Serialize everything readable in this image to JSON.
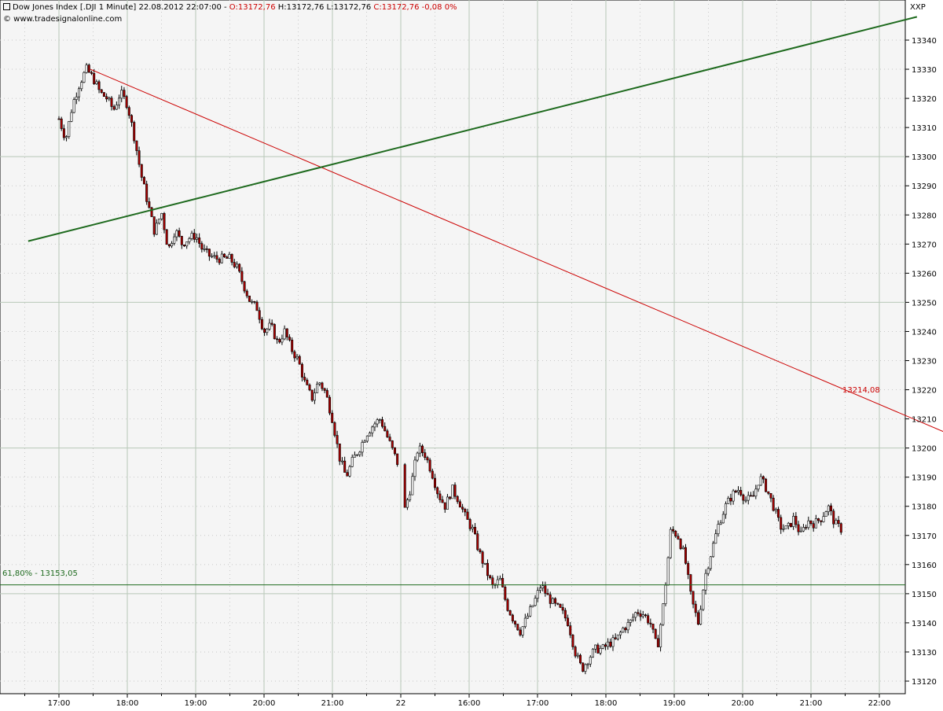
{
  "header": {
    "title_black": "Dow Jones Index [.DJI  1 Minute] 22.08.2012 22:07:00 - ",
    "open": "O:13172,76",
    "high": "H:13172,76",
    "low": "L:13172,76",
    "close_change": "C:13172,76 -0,08 0%",
    "copyright": "© www.tradesignalonline.com",
    "exchange": "XXP"
  },
  "chart_data": {
    "type": "candlestick",
    "title": "Dow Jones Index [.DJI  1 Minute] 22.08.2012 22:07:00",
    "ylim": [
      13110,
      13350
    ],
    "y_ticks": [
      13120,
      13130,
      13140,
      13150,
      13160,
      13170,
      13180,
      13190,
      13200,
      13210,
      13220,
      13230,
      13240,
      13250,
      13260,
      13270,
      13280,
      13290,
      13300,
      13310,
      13320,
      13330,
      13340
    ],
    "x_ticks": [
      "17:00",
      "18:00",
      "19:00",
      "20:00",
      "21:00",
      "22",
      "16:00",
      "17:00",
      "18:00",
      "19:00",
      "20:00",
      "21:00",
      "22:00"
    ],
    "price_path": [
      [
        0,
        13313
      ],
      [
        0.1,
        13306
      ],
      [
        0.2,
        13318
      ],
      [
        0.3,
        13325
      ],
      [
        0.4,
        13330
      ],
      [
        0.5,
        13327
      ],
      [
        0.6,
        13322
      ],
      [
        0.7,
        13320
      ],
      [
        0.8,
        13316
      ],
      [
        0.9,
        13322
      ],
      [
        1.0,
        13318
      ],
      [
        1.1,
        13307
      ],
      [
        1.2,
        13294
      ],
      [
        1.3,
        13284
      ],
      [
        1.4,
        13274
      ],
      [
        1.5,
        13281
      ],
      [
        1.6,
        13268
      ],
      [
        1.7,
        13275
      ],
      [
        1.8,
        13270
      ],
      [
        1.9,
        13272
      ],
      [
        2.0,
        13273
      ],
      [
        2.1,
        13268
      ],
      [
        2.2,
        13266
      ],
      [
        2.3,
        13265
      ],
      [
        2.5,
        13265
      ],
      [
        2.6,
        13262
      ],
      [
        2.7,
        13256
      ],
      [
        2.8,
        13250
      ],
      [
        2.9,
        13248
      ],
      [
        3.0,
        13240
      ],
      [
        3.1,
        13242
      ],
      [
        3.2,
        13236
      ],
      [
        3.3,
        13240
      ],
      [
        3.4,
        13234
      ],
      [
        3.5,
        13230
      ],
      [
        3.6,
        13222
      ],
      [
        3.7,
        13217
      ],
      [
        3.8,
        13223
      ],
      [
        3.9,
        13219
      ],
      [
        4.0,
        13210
      ],
      [
        4.1,
        13197
      ],
      [
        4.2,
        13190
      ],
      [
        4.3,
        13196
      ],
      [
        4.4,
        13200
      ],
      [
        4.5,
        13205
      ],
      [
        4.6,
        13208
      ],
      [
        4.7,
        13210
      ],
      [
        4.8,
        13204
      ],
      [
        4.95,
        13195
      ],
      [
        5.05,
        13178
      ],
      [
        5.15,
        13187
      ],
      [
        5.25,
        13200
      ],
      [
        5.35,
        13198
      ],
      [
        5.45,
        13192
      ],
      [
        5.55,
        13184
      ],
      [
        5.65,
        13180
      ],
      [
        5.75,
        13186
      ],
      [
        5.85,
        13182
      ],
      [
        5.95,
        13176
      ],
      [
        6.05,
        13172
      ],
      [
        6.15,
        13164
      ],
      [
        6.25,
        13158
      ],
      [
        6.35,
        13152
      ],
      [
        6.45,
        13155
      ],
      [
        6.55,
        13146
      ],
      [
        6.65,
        13141
      ],
      [
        6.75,
        13137
      ],
      [
        6.85,
        13142
      ],
      [
        6.95,
        13147
      ],
      [
        7.05,
        13153
      ],
      [
        7.15,
        13149
      ],
      [
        7.25,
        13146
      ],
      [
        7.35,
        13144
      ],
      [
        7.45,
        13140
      ],
      [
        7.55,
        13130
      ],
      [
        7.65,
        13124
      ],
      [
        7.75,
        13128
      ],
      [
        7.85,
        13131
      ],
      [
        7.95,
        13131
      ],
      [
        8.05,
        13133
      ],
      [
        8.15,
        13134
      ],
      [
        8.25,
        13138
      ],
      [
        8.35,
        13140
      ],
      [
        8.45,
        13144
      ],
      [
        8.55,
        13143
      ],
      [
        8.65,
        13140
      ],
      [
        8.75,
        13131
      ],
      [
        8.85,
        13148
      ],
      [
        8.95,
        13172
      ],
      [
        9.05,
        13170
      ],
      [
        9.15,
        13163
      ],
      [
        9.25,
        13148
      ],
      [
        9.35,
        13140
      ],
      [
        9.45,
        13156
      ],
      [
        9.55,
        13165
      ],
      [
        9.65,
        13174
      ],
      [
        9.75,
        13180
      ],
      [
        9.85,
        13184
      ],
      [
        9.95,
        13186
      ],
      [
        10.05,
        13182
      ],
      [
        10.15,
        13183
      ],
      [
        10.25,
        13190
      ],
      [
        10.35,
        13186
      ],
      [
        10.45,
        13180
      ],
      [
        10.55,
        13173
      ],
      [
        10.65,
        13172
      ],
      [
        10.75,
        13176
      ],
      [
        10.85,
        13170
      ],
      [
        10.95,
        13175
      ],
      [
        11.05,
        13174
      ],
      [
        11.15,
        13176
      ],
      [
        11.25,
        13180
      ],
      [
        11.35,
        13174
      ],
      [
        11.45,
        13172
      ]
    ],
    "trendlines": [
      {
        "color": "#cc0000",
        "from": [
          0.46,
          13330
        ],
        "to": [
          13.0,
          13205
        ]
      },
      {
        "color": "#1e6a1e",
        "from": [
          -0.45,
          13271
        ],
        "to": [
          12.55,
          13348
        ]
      }
    ],
    "hline": {
      "value": 13153.05,
      "color": "#1e6a1e"
    },
    "annotations": [
      {
        "text": "13214,08",
        "color": "#cc0000"
      },
      {
        "text": "61,80% - 13153,05",
        "color": "#1e6a1e"
      }
    ]
  }
}
